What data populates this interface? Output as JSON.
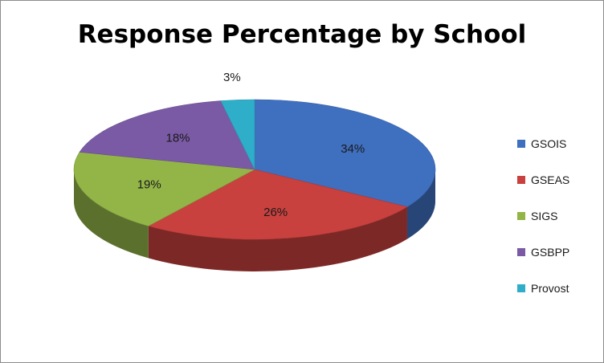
{
  "chart_data": {
    "type": "pie",
    "title": "Response Percentage by School",
    "categories": [
      "GSOIS",
      "GSEAS",
      "SIGS",
      "GSBPP",
      "Provost"
    ],
    "values": [
      34,
      26,
      19,
      18,
      3
    ],
    "labels": [
      "34%",
      "26%",
      "19%",
      "18%",
      "3%"
    ],
    "colors": [
      "#3f6fbf",
      "#c8413e",
      "#93b548",
      "#7a5aa5",
      "#2faec9"
    ],
    "three_d": true,
    "legend": "right"
  }
}
